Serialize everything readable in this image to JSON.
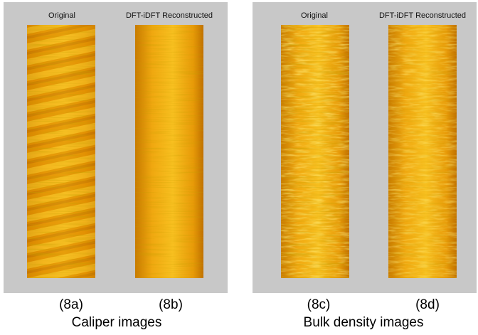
{
  "panels": [
    {
      "left_label": "Original",
      "right_label": "DFT-iDFT Reconstructed",
      "sub_captions": [
        "(8a)",
        "(8b)"
      ],
      "caption": "Caliper images"
    },
    {
      "left_label": "Original",
      "right_label": "DFT-iDFT Reconstructed",
      "sub_captions": [
        "(8c)",
        "(8d)"
      ],
      "caption": "Bulk density images"
    }
  ]
}
